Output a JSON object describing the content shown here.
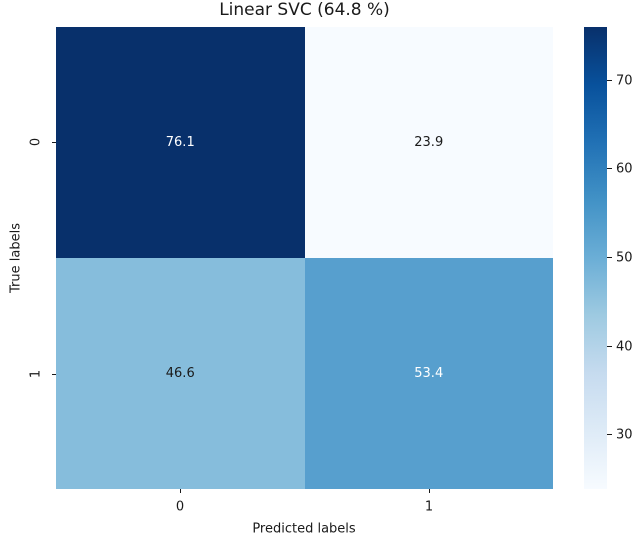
{
  "title": "Linear SVC (64.8 %)",
  "axes": {
    "x_label": "Predicted labels",
    "y_label": "True labels",
    "x_ticks": [
      "0",
      "1"
    ],
    "y_ticks": [
      "0",
      "1"
    ]
  },
  "cells": [
    {
      "label": "76.1",
      "bg": "#08306b",
      "fg": "#ffffff"
    },
    {
      "label": "23.9",
      "bg": "#f7fbff",
      "fg": "#1a1a1a"
    },
    {
      "label": "46.6",
      "bg": "#86bddc",
      "fg": "#1a1a1a"
    },
    {
      "label": "53.4",
      "bg": "#579fce",
      "fg": "#ffffff"
    }
  ],
  "colorbar": {
    "gradient_stops_top_to_bottom": [
      "#08306b",
      "#08519c",
      "#2171b5",
      "#4292c6",
      "#6baed6",
      "#9ecae1",
      "#c6dbef",
      "#deebf7",
      "#f7fbff"
    ],
    "ticks": [
      {
        "label": "70",
        "pct_from_top": 11.7
      },
      {
        "label": "60",
        "pct_from_top": 30.8
      },
      {
        "label": "50",
        "pct_from_top": 50.0
      },
      {
        "label": "40",
        "pct_from_top": 69.2
      },
      {
        "label": "30",
        "pct_from_top": 88.3
      }
    ]
  },
  "chart_data": {
    "type": "heatmap",
    "title": "Linear SVC (64.8 %)",
    "xlabel": "Predicted labels",
    "ylabel": "True labels",
    "x_categories": [
      "0",
      "1"
    ],
    "y_categories": [
      "0",
      "1"
    ],
    "values": [
      [
        76.1,
        23.9
      ],
      [
        46.6,
        53.4
      ]
    ],
    "colormap": "Blues",
    "vmin": 23.9,
    "vmax": 76.1,
    "colorbar_ticks": [
      30,
      40,
      50,
      60,
      70
    ],
    "legend_position": "right-colorbar",
    "grid": false
  }
}
